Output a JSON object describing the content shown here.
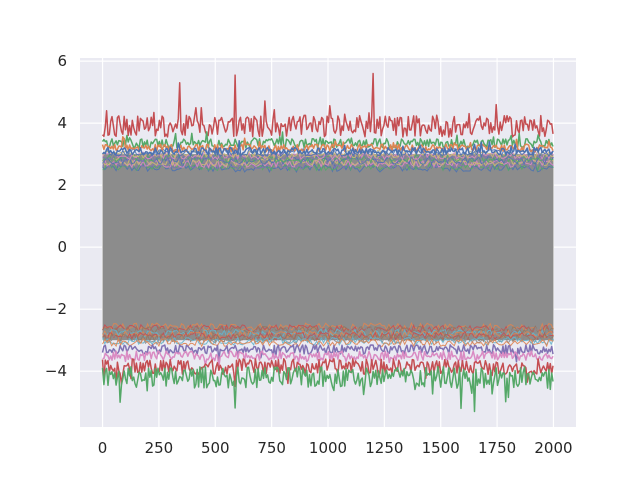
{
  "chart_data": {
    "type": "line",
    "title": "",
    "xlabel": "",
    "ylabel": "",
    "xlim": [
      -100,
      2100
    ],
    "ylim": [
      -5.8,
      6.1
    ],
    "x_ticks": [
      0,
      250,
      500,
      750,
      1000,
      1250,
      1500,
      1750,
      2000
    ],
    "y_ticks": [
      -4,
      -2,
      0,
      2,
      4,
      6
    ],
    "x_tick_labels": [
      "0",
      "250",
      "500",
      "750",
      "1000",
      "1250",
      "1500",
      "1750",
      "2000"
    ],
    "y_tick_labels": [
      "−4",
      "−2",
      "0",
      "2",
      "4",
      "6"
    ],
    "grid": true,
    "legend": "none",
    "x_range": [
      0,
      2000
    ],
    "series_summary": "many overlapping noisy series spanning x = 0 to 2000",
    "dense_band": {
      "min": -3.0,
      "max": 3.0,
      "color": "#8c8c8c"
    },
    "series": [
      {
        "color": "#c44e52",
        "base": 3.9,
        "spread": 0.35,
        "peaks": [
          {
            "x": 590,
            "y": 5.55
          },
          {
            "x": 1200,
            "y": 5.6
          },
          {
            "x": 340,
            "y": 5.3
          }
        ]
      },
      {
        "color": "#55a868",
        "base": 3.35,
        "spread": 0.15,
        "peaks": []
      },
      {
        "color": "#dd8452",
        "base": 3.2,
        "spread": 0.12,
        "peaks": []
      },
      {
        "color": "#4c72b0",
        "base": 3.1,
        "spread": 0.12,
        "peaks": []
      },
      {
        "color": "#8172b3",
        "base": -3.3,
        "spread": 0.15,
        "peaks": []
      },
      {
        "color": "#da8bc3",
        "base": -3.5,
        "spread": 0.15,
        "peaks": []
      },
      {
        "color": "#c44e52",
        "base": -3.85,
        "spread": 0.25,
        "peaks": []
      },
      {
        "color": "#55a868",
        "base": -4.2,
        "spread": 0.35,
        "peaks": [
          {
            "x": 80,
            "y": -5.0
          },
          {
            "x": 1650,
            "y": -5.3
          },
          {
            "x": 1590,
            "y": -5.2
          }
        ]
      }
    ],
    "colors": {
      "background": "#eaeaf2",
      "grid": "#ffffff",
      "palette": [
        "#4c72b0",
        "#dd8452",
        "#55a868",
        "#c44e52",
        "#8172b3",
        "#937860",
        "#da8bc3",
        "#8c8c8c",
        "#ccb974",
        "#64b5cd"
      ]
    }
  }
}
